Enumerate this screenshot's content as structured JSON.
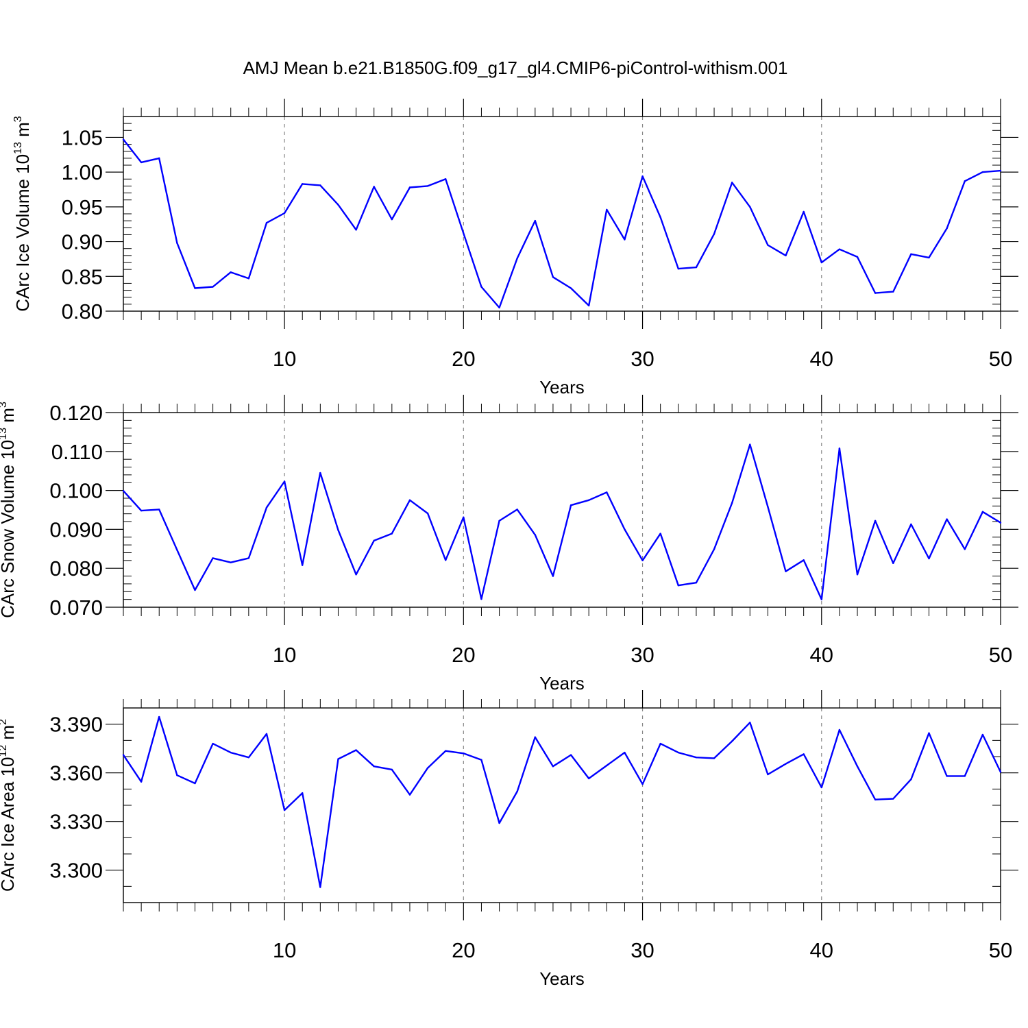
{
  "title": "AMJ Mean b.e21.B1850G.f09_g17_gl4.CMIP6-piControl-withism.001",
  "colors": {
    "line": "#0000ff",
    "axis": "#000000",
    "grid": "#888888",
    "background": "#ffffff"
  },
  "chart_data": [
    {
      "type": "line",
      "xlabel": "Years",
      "ylabel_main": "CArc Ice Volume 10",
      "ylabel_exp": "13",
      "ylabel_unit": " m",
      "ylabel_unit_exp": "3",
      "xlim": [
        1,
        50
      ],
      "ylim": [
        0.8,
        1.08
      ],
      "xticks": [
        10,
        20,
        30,
        40,
        50
      ],
      "xtick_labels": [
        "10",
        "20",
        "30",
        "40",
        "50"
      ],
      "yticks": [
        0.8,
        0.85,
        0.9,
        0.95,
        1.0,
        1.05
      ],
      "ytick_labels": [
        "0.80",
        "0.85",
        "0.90",
        "0.95",
        "1.00",
        "1.05"
      ],
      "ytick_minor_step": 0.01,
      "grid": "vertical dashed at major x ticks",
      "series": [
        {
          "x": [
            1,
            2,
            3,
            4,
            5,
            6,
            7,
            8,
            9,
            10,
            11,
            12,
            13,
            14,
            15,
            16,
            17,
            18,
            19,
            20,
            21,
            22,
            23,
            24,
            25,
            26,
            27,
            28,
            29,
            30,
            31,
            32,
            33,
            34,
            35,
            36,
            37,
            38,
            39,
            40,
            41,
            42,
            43,
            44,
            45,
            46,
            47,
            48,
            49,
            50
          ],
          "values": [
            1.047,
            1.014,
            1.02,
            0.898,
            0.833,
            0.835,
            0.856,
            0.847,
            0.927,
            0.941,
            0.983,
            0.981,
            0.953,
            0.917,
            0.979,
            0.932,
            0.978,
            0.98,
            0.99,
            0.912,
            0.835,
            0.805,
            0.876,
            0.93,
            0.849,
            0.833,
            0.808,
            0.946,
            0.903,
            0.994,
            0.935,
            0.861,
            0.863,
            0.911,
            0.985,
            0.95,
            0.895,
            0.88,
            0.943,
            0.87,
            0.889,
            0.878,
            0.826,
            0.828,
            0.882,
            0.877,
            0.919,
            0.987,
            1.0,
            1.002
          ]
        }
      ]
    },
    {
      "type": "line",
      "xlabel": "Years",
      "ylabel_main": "CArc Snow Volume 10",
      "ylabel_exp": "13",
      "ylabel_unit": " m",
      "ylabel_unit_exp": "3",
      "xlim": [
        1,
        50
      ],
      "ylim": [
        0.07,
        0.12
      ],
      "xticks": [
        10,
        20,
        30,
        40,
        50
      ],
      "xtick_labels": [
        "10",
        "20",
        "30",
        "40",
        "50"
      ],
      "yticks": [
        0.07,
        0.08,
        0.09,
        0.1,
        0.11,
        0.12
      ],
      "ytick_labels": [
        "0.070",
        "0.080",
        "0.090",
        "0.100",
        "0.110",
        "0.120"
      ],
      "ytick_minor_step": 0.002,
      "grid": "vertical dashed at major x ticks",
      "series": [
        {
          "x": [
            1,
            2,
            3,
            4,
            5,
            6,
            7,
            8,
            9,
            10,
            11,
            12,
            13,
            14,
            15,
            16,
            17,
            18,
            19,
            20,
            21,
            22,
            23,
            24,
            25,
            26,
            27,
            28,
            29,
            30,
            31,
            32,
            33,
            34,
            35,
            36,
            37,
            38,
            39,
            40,
            41,
            42,
            43,
            44,
            45,
            46,
            47,
            48,
            49,
            50
          ],
          "values": [
            0.0999,
            0.0948,
            0.0951,
            0.0847,
            0.0744,
            0.0826,
            0.0815,
            0.0826,
            0.0956,
            0.1023,
            0.0808,
            0.1045,
            0.0898,
            0.0784,
            0.0871,
            0.0889,
            0.0975,
            0.0941,
            0.0821,
            0.0931,
            0.0721,
            0.0922,
            0.0951,
            0.0886,
            0.078,
            0.0962,
            0.0975,
            0.0995,
            0.09,
            0.082,
            0.0889,
            0.0756,
            0.0763,
            0.0849,
            0.0968,
            0.1118,
            0.0958,
            0.0792,
            0.0821,
            0.072,
            0.1108,
            0.0784,
            0.0922,
            0.0813,
            0.0913,
            0.0825,
            0.0926,
            0.0849,
            0.0945,
            0.0917
          ]
        }
      ]
    },
    {
      "type": "line",
      "xlabel": "Years",
      "ylabel_main": "CArc Ice Area 10",
      "ylabel_exp": "12",
      "ylabel_unit": " m",
      "ylabel_unit_exp": "2",
      "xlim": [
        1,
        50
      ],
      "ylim": [
        3.28,
        3.4
      ],
      "xticks": [
        10,
        20,
        30,
        40,
        50
      ],
      "xtick_labels": [
        "10",
        "20",
        "30",
        "40",
        "50"
      ],
      "yticks": [
        3.3,
        3.33,
        3.36,
        3.39
      ],
      "ytick_labels": [
        "3.300",
        "3.330",
        "3.360",
        "3.390"
      ],
      "ytick_minor_step": 0.01,
      "grid": "vertical dashed at major x ticks",
      "series": [
        {
          "x": [
            1,
            2,
            3,
            4,
            5,
            6,
            7,
            8,
            9,
            10,
            11,
            12,
            13,
            14,
            15,
            16,
            17,
            18,
            19,
            20,
            21,
            22,
            23,
            24,
            25,
            26,
            27,
            28,
            29,
            30,
            31,
            32,
            33,
            34,
            35,
            36,
            37,
            38,
            39,
            40,
            41,
            42,
            43,
            44,
            45,
            46,
            47,
            48,
            49,
            50
          ],
          "values": [
            3.371,
            3.3545,
            3.3945,
            3.3585,
            3.3535,
            3.378,
            3.3725,
            3.3695,
            3.384,
            3.337,
            3.3475,
            3.2895,
            3.3685,
            3.374,
            3.364,
            3.362,
            3.3465,
            3.363,
            3.3735,
            3.372,
            3.368,
            3.329,
            3.3485,
            3.382,
            3.364,
            3.371,
            3.3565,
            3.3645,
            3.3725,
            3.353,
            3.378,
            3.3725,
            3.3695,
            3.369,
            3.3795,
            3.391,
            3.359,
            3.3655,
            3.3715,
            3.351,
            3.3865,
            3.364,
            3.3435,
            3.344,
            3.356,
            3.3845,
            3.358,
            3.358,
            3.3835,
            3.3605
          ]
        }
      ]
    }
  ]
}
